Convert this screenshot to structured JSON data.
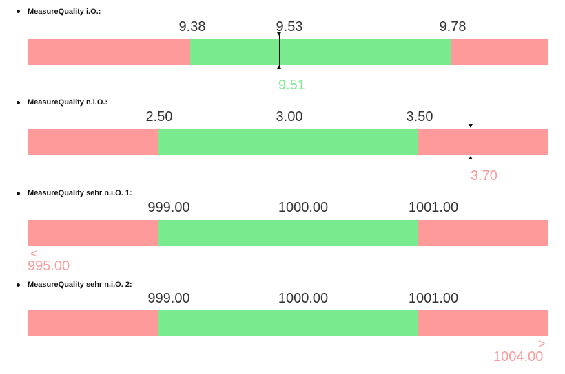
{
  "colors": {
    "ok": "#7aea8f",
    "nok": "#ff9a9a",
    "marker": "#111111"
  },
  "items": [
    {
      "title": "MeasureQuality i.O.:",
      "lower": "9.38",
      "nominal": "9.53",
      "upper": "9.78",
      "value": "9.51",
      "status": "ok"
    },
    {
      "title": "MeasureQuality n.i.O.:",
      "lower": "2.50",
      "nominal": "3.00",
      "upper": "3.50",
      "value": "3.70",
      "status": "nok"
    },
    {
      "title": "MeasureQuality sehr n.i.O. 1:",
      "lower": "999.00",
      "nominal": "1000.00",
      "upper": "1001.00",
      "value": "995.00",
      "status": "nok",
      "overflow_symbol": "<"
    },
    {
      "title": "MeasureQuality sehr n.i.O. 2:",
      "lower": "999.00",
      "nominal": "1000.00",
      "upper": "1001.00",
      "value": "1004.00",
      "status": "nok",
      "overflow_symbol": ">"
    }
  ]
}
